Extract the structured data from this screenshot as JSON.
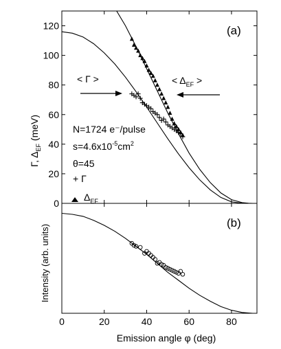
{
  "chart_data": [
    {
      "panel": "(a)",
      "type": "line",
      "ylabel": "Γ, Δ_EF (meV)",
      "ylabel_main": "Γ, Δ",
      "ylabel_sub": "EF",
      "ylabel_unit": " (meV)",
      "xlim": [
        0,
        92
      ],
      "ylim": [
        0,
        130
      ],
      "xticks": [
        0,
        20,
        40,
        60,
        80
      ],
      "yticks": [
        0,
        20,
        40,
        60,
        80,
        100,
        120
      ],
      "ytick_labels": [
        "0",
        "20",
        "40",
        "60",
        "80",
        "100",
        "120"
      ],
      "series": [
        {
          "name": "Γ",
          "style": "line",
          "x": [
            0,
            5,
            10,
            15,
            20,
            25,
            30,
            35,
            40,
            45,
            50,
            55,
            60,
            65,
            70,
            75,
            80,
            85,
            88,
            90
          ],
          "y": [
            116,
            115,
            112.4,
            107.9,
            101.7,
            94.1,
            85.3,
            75.5,
            65.1,
            54.3,
            43.6,
            33.4,
            24.1,
            15.9,
            9.1,
            4.0,
            1.0,
            0.1,
            0,
            0
          ]
        },
        {
          "name": "Δ_EF",
          "style": "line",
          "x": [
            20,
            25,
            30,
            35,
            40,
            45,
            50,
            55,
            60,
            65,
            70,
            75,
            80,
            85,
            88,
            90
          ],
          "y": [
            140,
            132,
            120,
            106,
            91,
            76,
            61,
            47,
            34,
            23,
            14,
            7,
            2.5,
            0.5,
            0.1,
            0
          ]
        },
        {
          "name": "Γ",
          "style": "marker-plus",
          "x": [
            33,
            34,
            35,
            36,
            37,
            38,
            39,
            40,
            41,
            42,
            43,
            44,
            45,
            46,
            47,
            48,
            49,
            50,
            51,
            52,
            53,
            54,
            55,
            56,
            57
          ],
          "y": [
            74,
            73,
            72,
            74,
            71,
            68,
            67,
            66,
            65,
            64,
            62,
            61,
            60,
            58,
            56,
            57,
            55,
            53,
            52,
            51,
            50,
            49,
            48,
            47,
            45
          ]
        },
        {
          "name": "Δ_EF",
          "style": "marker-triangle",
          "x": [
            33,
            34,
            35,
            36,
            37,
            38,
            39,
            40,
            41,
            42,
            43,
            44,
            45,
            46,
            47,
            48,
            49,
            50,
            51,
            52,
            53,
            54,
            55,
            56,
            57
          ],
          "y": [
            111,
            107,
            105,
            103,
            100,
            98,
            96,
            93,
            90,
            88,
            86,
            83,
            80,
            77,
            74,
            71,
            68,
            65,
            61,
            57,
            54,
            52,
            50,
            48,
            46
          ]
        }
      ],
      "annotations": {
        "panel_label": "(a)",
        "gamma_arrow_label": "< Γ >",
        "delta_arrow_label_left": "< Δ",
        "delta_arrow_label_sub": "EF",
        "delta_arrow_label_right": " >",
        "param_N": "N=1724 e⁻/pulse",
        "param_s_main": "s=4.6x10",
        "param_s_exp1": "-5",
        "param_s_unit": "cm",
        "param_s_exp2": "2",
        "param_theta": "θ=45",
        "legend_gamma": "+ Γ",
        "legend_delta_main": "Δ",
        "legend_delta_sub": "EF"
      }
    },
    {
      "panel": "(b)",
      "type": "line",
      "xlabel": "Emission angle φ (deg)",
      "ylabel": "Intensity (arb. units)",
      "xlim": [
        0,
        92
      ],
      "ylim": [
        0,
        1.1
      ],
      "xticks": [
        0,
        20,
        40,
        60,
        80
      ],
      "xtick_labels": [
        "0",
        "20",
        "40",
        "60",
        "80"
      ],
      "series": [
        {
          "name": "",
          "style": "line",
          "x": [
            0,
            5,
            10,
            15,
            20,
            25,
            30,
            35,
            40,
            45,
            50,
            55,
            60,
            65,
            70,
            75,
            80,
            85,
            90
          ],
          "y": [
            1.0,
            0.99,
            0.97,
            0.93,
            0.88,
            0.82,
            0.75,
            0.67,
            0.59,
            0.5,
            0.41,
            0.33,
            0.25,
            0.18,
            0.12,
            0.067,
            0.03,
            0.008,
            0
          ]
        },
        {
          "name": "",
          "style": "marker-circle",
          "x": [
            33,
            34,
            35,
            37,
            39,
            40,
            41,
            42,
            43,
            44,
            45,
            46,
            47,
            48,
            49,
            50,
            51,
            52,
            53,
            54,
            55,
            56,
            57
          ],
          "y": [
            0.7,
            0.68,
            0.67,
            0.66,
            0.6,
            0.62,
            0.6,
            0.58,
            0.56,
            0.54,
            0.5,
            0.51,
            0.49,
            0.48,
            0.46,
            0.45,
            0.44,
            0.43,
            0.42,
            0.41,
            0.4,
            0.42,
            0.39
          ]
        }
      ],
      "annotations": {
        "panel_label": "(b)"
      }
    }
  ]
}
